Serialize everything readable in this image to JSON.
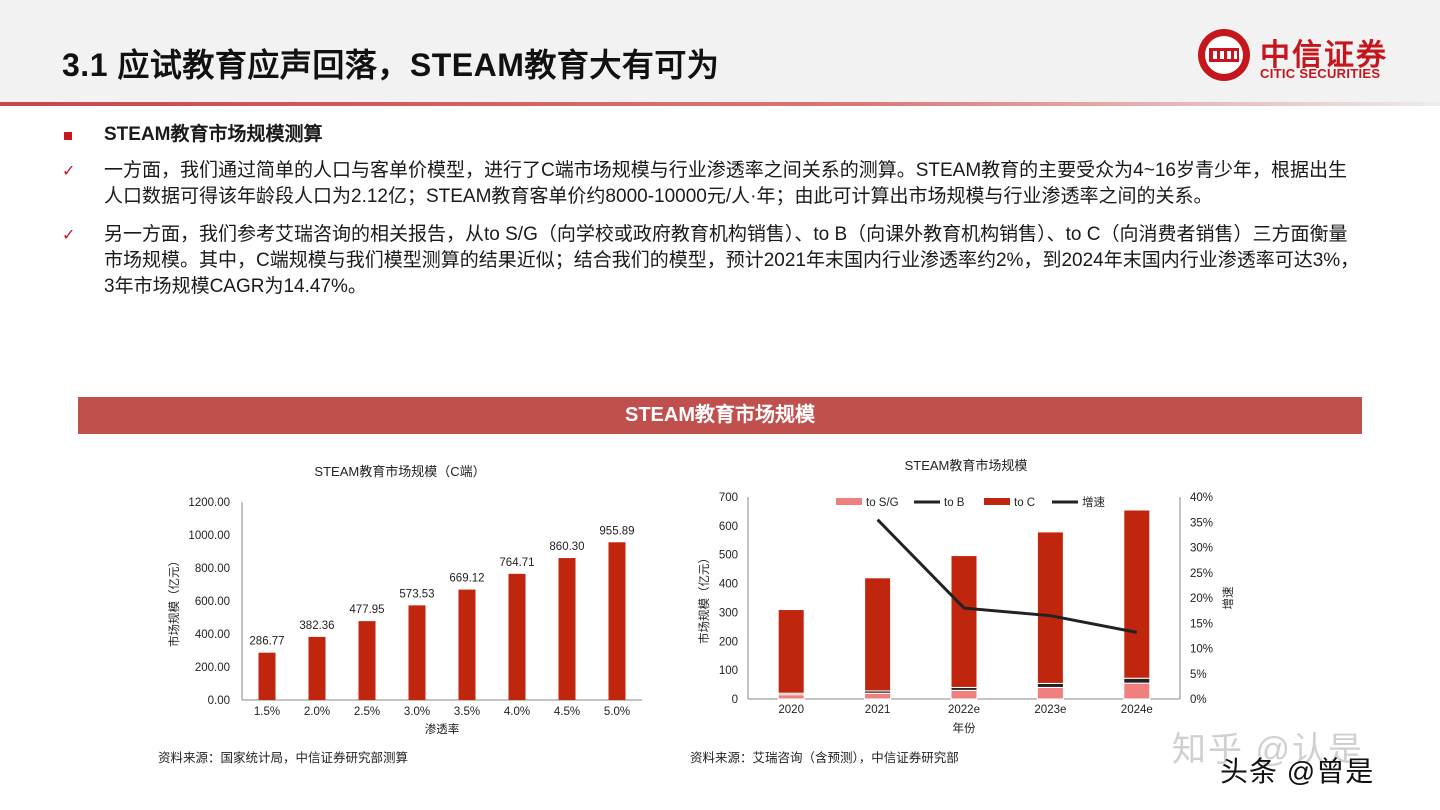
{
  "header": {
    "title": "3.1 应试教育应声回落，STEAM教育大有可为",
    "logo_cn": "中信证券",
    "logo_en": "CITIC SECURITIES"
  },
  "section": {
    "heading": "STEAM教育市场规模测算",
    "para1": "一方面，我们通过简单的人口与客单价模型，进行了C端市场规模与行业渗透率之间关系的测算。STEAM教育的主要受众为4~16岁青少年，根据出生人口数据可得该年龄段人口为2.12亿；STEAM教育客单价约8000-10000元/人·年；由此可计算出市场规模与行业渗透率之间的关系。",
    "para2": "另一方面，我们参考艾瑞咨询的相关报告，从to S/G（向学校或政府教育机构销售）、to B（向课外教育机构销售）、to C（向消费者销售）三方面衡量市场规模。其中，C端规模与我们模型测算的结果近似；结合我们的模型，预计2021年末国内行业渗透率约2%，到2024年末国内行业渗透率可达3%，3年市场规模CAGR为14.47%。"
  },
  "banner": "STEAM教育市场规模",
  "colors": {
    "accent": "#c5161d",
    "banner": "#c0504d",
    "bar_c": "#c0260d",
    "bar_sg": "#f08080",
    "bar_b": "#222222",
    "line": "#222222"
  },
  "chart_data": [
    {
      "type": "bar",
      "title": "STEAM教育市场规模（C端）",
      "xlabel": "渗透率",
      "ylabel": "市场规模（亿元）",
      "categories": [
        "1.5%",
        "2.0%",
        "2.5%",
        "3.0%",
        "3.5%",
        "4.0%",
        "4.5%",
        "5.0%"
      ],
      "values": [
        286.77,
        382.36,
        477.95,
        573.53,
        669.12,
        764.71,
        860.3,
        955.89
      ],
      "value_labels": [
        "286.77",
        "382.36",
        "477.95",
        "573.53",
        "669.12",
        "764.71",
        "860.30",
        "955.89"
      ],
      "ylim": [
        0,
        1200
      ],
      "yticks": [
        "0.00",
        "200.00",
        "400.00",
        "600.00",
        "800.00",
        "1000.00",
        "1200.00"
      ],
      "source": "资料来源：国家统计局，中信证券研究部测算"
    },
    {
      "type": "bar",
      "stacked": true,
      "title": "STEAM教育市场规模",
      "xlabel": "年份",
      "ylabel": "市场规模（亿元）",
      "y2label": "增速",
      "categories": [
        "2020",
        "2021",
        "2022e",
        "2023e",
        "2024e"
      ],
      "series": [
        {
          "name": "to S/G",
          "values": [
            15,
            20,
            30,
            40,
            55
          ]
        },
        {
          "name": "to B",
          "values": [
            5,
            8,
            10,
            14,
            17
          ]
        },
        {
          "name": "to C",
          "values": [
            290,
            392,
            457,
            525,
            583
          ]
        }
      ],
      "line": {
        "name": "增速",
        "values": [
          null,
          0.355,
          0.18,
          0.165,
          0.132
        ]
      },
      "ylim": [
        0,
        700
      ],
      "yticks": [
        "0",
        "100",
        "200",
        "300",
        "400",
        "500",
        "600",
        "700"
      ],
      "y2lim": [
        0,
        0.4
      ],
      "y2ticks": [
        "0%",
        "5%",
        "10%",
        "15%",
        "20%",
        "25%",
        "30%",
        "35%",
        "40%"
      ],
      "legend_position": "top",
      "source": "资料来源：艾瑞咨询（含预测），中信证券研究部"
    }
  ],
  "watermark": "知乎 @认是",
  "watermark2": "头条 @曾是"
}
